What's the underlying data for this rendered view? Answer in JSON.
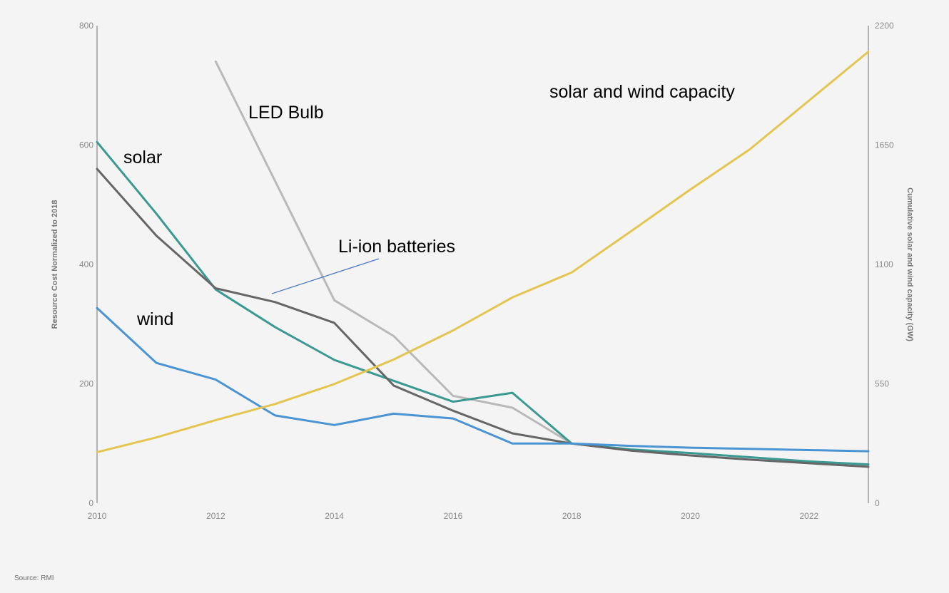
{
  "chart_data": {
    "type": "line",
    "x_range": [
      2010,
      2023
    ],
    "x_ticks": [
      2010,
      2012,
      2014,
      2016,
      2018,
      2020,
      2022
    ],
    "x_tick_labels": [
      "2010",
      "2012",
      "2014",
      "2016",
      "2018",
      "2020",
      "2022"
    ],
    "y_left": {
      "label": "Resource Cost Normalized to 2018",
      "range": [
        0,
        800
      ],
      "ticks": [
        0,
        200,
        400,
        600,
        800
      ],
      "tick_labels": [
        "0",
        "200",
        "400",
        "600",
        "800"
      ]
    },
    "y_right": {
      "label": "Cumulative solar and wind capacity (GW)",
      "range": [
        0,
        2200
      ],
      "ticks": [
        0,
        550,
        1100,
        1650,
        2200
      ],
      "tick_labels": [
        "0",
        "550",
        "1100",
        "1650",
        "2200"
      ]
    },
    "grid": false,
    "series": [
      {
        "name": "LED Bulb",
        "axis": "left",
        "color": "#b9b9b9",
        "x": [
          2012,
          2014,
          2015,
          2016,
          2017,
          2018
        ],
        "y": [
          740,
          340,
          280,
          180,
          160,
          100
        ]
      },
      {
        "name": "solar",
        "axis": "left",
        "color": "#3a9a91",
        "x": [
          2010,
          2011,
          2012,
          2013,
          2014,
          2015,
          2016,
          2017,
          2018,
          2019,
          2020,
          2021,
          2022,
          2023
        ],
        "y": [
          605,
          485,
          358,
          295,
          240,
          205,
          170,
          185,
          100,
          90,
          84,
          77,
          70,
          65
        ]
      },
      {
        "name": "Li-ion batteries",
        "axis": "left",
        "color": "#666666",
        "x": [
          2010,
          2011,
          2012,
          2013,
          2014,
          2015,
          2016,
          2017,
          2018,
          2019,
          2020,
          2021,
          2022,
          2023
        ],
        "y": [
          560,
          448,
          360,
          337,
          302,
          197,
          155,
          117,
          100,
          88,
          80,
          73,
          67,
          61
        ]
      },
      {
        "name": "wind",
        "axis": "left",
        "color": "#4a94d4",
        "x": [
          2010,
          2011,
          2012,
          2013,
          2014,
          2015,
          2016,
          2017,
          2018,
          2019,
          2020,
          2021,
          2022,
          2023
        ],
        "y": [
          327,
          235,
          207,
          147,
          131,
          150,
          142,
          100,
          100,
          96,
          93,
          91,
          89,
          87
        ]
      },
      {
        "name": "solar and wind capacity",
        "axis": "right",
        "color": "#e4c550",
        "x": [
          2010,
          2011,
          2012,
          2013,
          2014,
          2015,
          2016,
          2017,
          2018,
          2019,
          2020,
          2021,
          2022,
          2023
        ],
        "y": [
          235,
          303,
          383,
          457,
          549,
          662,
          796,
          948,
          1063,
          1253,
          1445,
          1630,
          1855,
          2080
        ]
      }
    ],
    "annotations": [
      {
        "text": "LED Bulb",
        "series": "LED Bulb"
      },
      {
        "text": "solar and wind capacity",
        "series": "solar and wind capacity"
      },
      {
        "text": "solar",
        "series": "solar"
      },
      {
        "text": "Li-ion batteries",
        "series": "Li-ion batteries"
      },
      {
        "text": "wind",
        "series": "wind"
      }
    ],
    "source": "Source: RMI"
  }
}
